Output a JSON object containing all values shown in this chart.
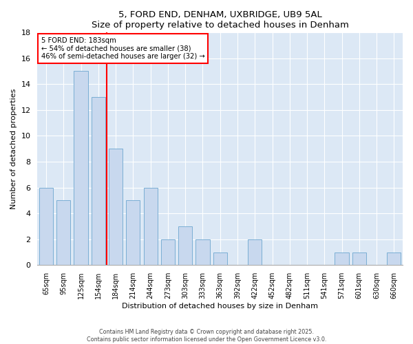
{
  "title": "5, FORD END, DENHAM, UXBRIDGE, UB9 5AL",
  "subtitle": "Size of property relative to detached houses in Denham",
  "xlabel": "Distribution of detached houses by size in Denham",
  "ylabel": "Number of detached properties",
  "categories": [
    "65sqm",
    "95sqm",
    "125sqm",
    "154sqm",
    "184sqm",
    "214sqm",
    "244sqm",
    "273sqm",
    "303sqm",
    "333sqm",
    "363sqm",
    "392sqm",
    "422sqm",
    "452sqm",
    "482sqm",
    "511sqm",
    "541sqm",
    "571sqm",
    "601sqm",
    "630sqm",
    "660sqm"
  ],
  "values": [
    6,
    5,
    15,
    13,
    9,
    5,
    6,
    2,
    3,
    2,
    1,
    0,
    2,
    0,
    0,
    0,
    0,
    1,
    1,
    0,
    1
  ],
  "bar_color": "#c8d8ee",
  "bar_edge_color": "#7aaed4",
  "red_line_x": 3.5,
  "ylim": [
    0,
    18
  ],
  "yticks": [
    0,
    2,
    4,
    6,
    8,
    10,
    12,
    14,
    16,
    18
  ],
  "annotation_title": "5 FORD END: 183sqm",
  "annotation_line1": "← 54% of detached houses are smaller (38)",
  "annotation_line2": "46% of semi-detached houses are larger (32) →",
  "fig_bg_color": "#ffffff",
  "plot_bg_color": "#dce8f5",
  "grid_color": "#ffffff",
  "footer_line1": "Contains HM Land Registry data © Crown copyright and database right 2025.",
  "footer_line2": "Contains public sector information licensed under the Open Government Licence v3.0."
}
